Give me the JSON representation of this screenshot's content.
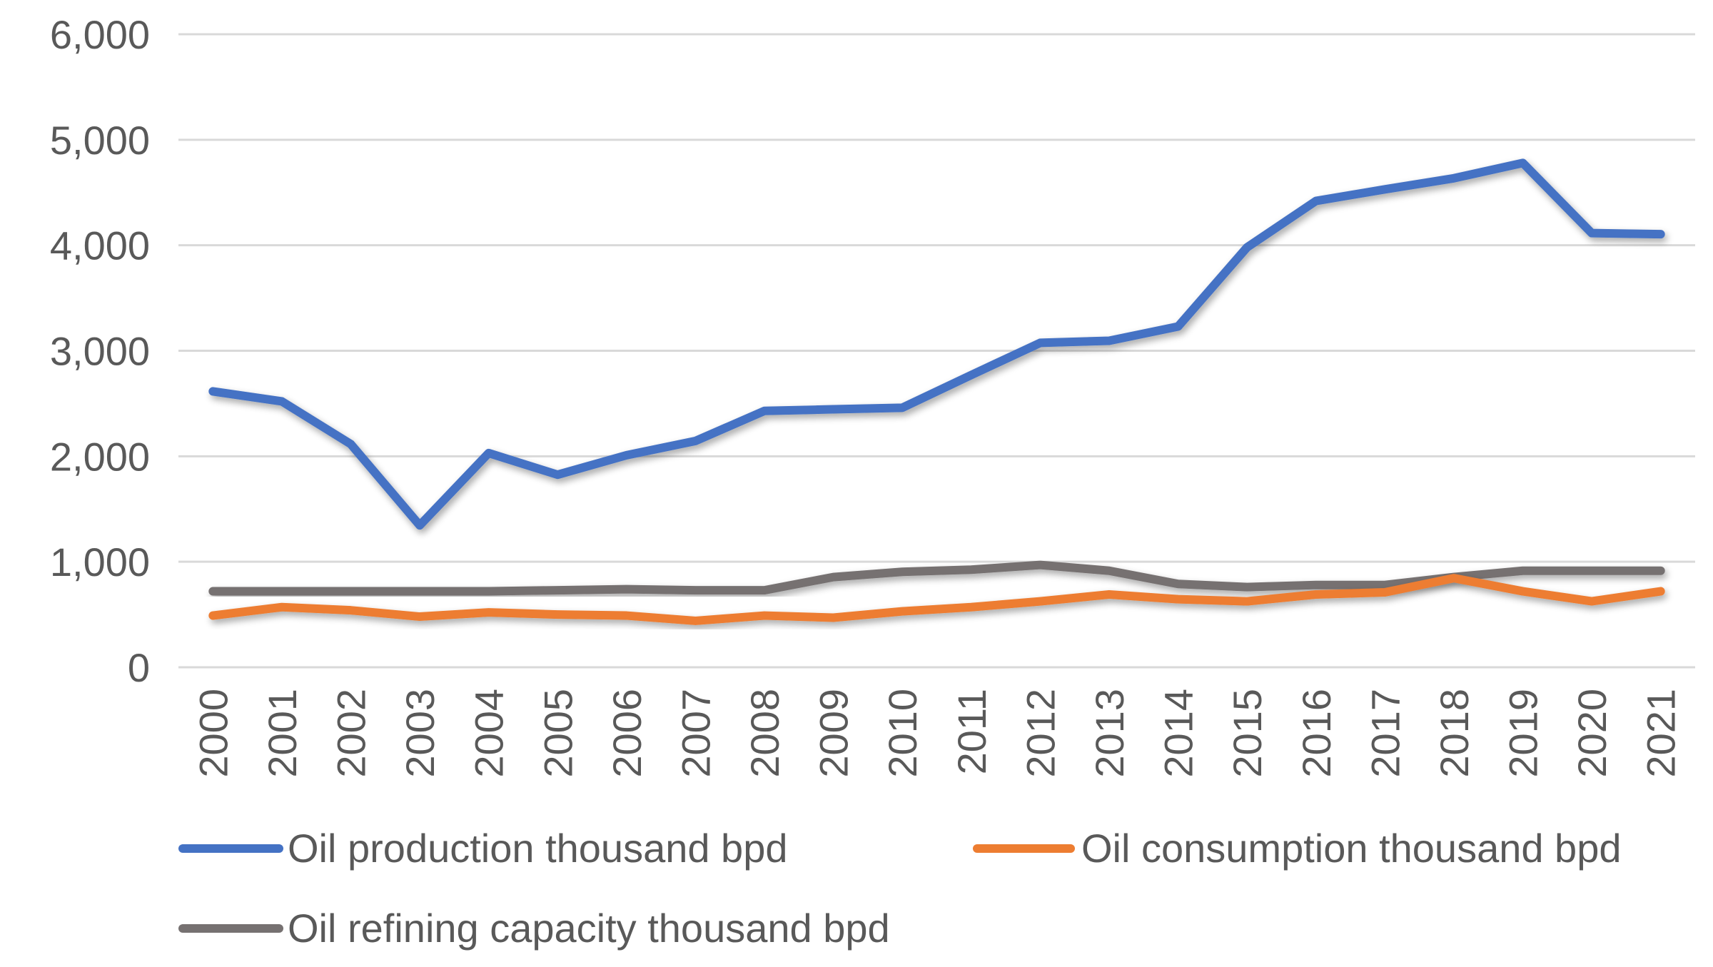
{
  "chart_data": {
    "type": "line",
    "title": "",
    "xlabel": "",
    "ylabel": "",
    "ylim": [
      0,
      6000
    ],
    "yticks": [
      "0",
      "1,000",
      "2,000",
      "3,000",
      "4,000",
      "5,000",
      "6,000"
    ],
    "grid": true,
    "legend_position": "bottom",
    "categories": [
      "2000",
      "2001",
      "2002",
      "2003",
      "2004",
      "2005",
      "2006",
      "2007",
      "2008",
      "2009",
      "2010",
      "2011",
      "2012",
      "2013",
      "2014",
      "2015",
      "2016",
      "2017",
      "2018",
      "2019",
      "2020",
      "2021"
    ],
    "series": [
      {
        "name": "Oil production thousand bpd",
        "color": "#4472C4",
        "values": [
          2615,
          2520,
          2115,
          1345,
          2030,
          1825,
          2010,
          2145,
          2430,
          2445,
          2460,
          2770,
          3075,
          3095,
          3230,
          3980,
          4420,
          4530,
          4635,
          4780,
          4115,
          4105
        ]
      },
      {
        "name": "Oil consumption thousand bpd",
        "color": "#ED7D31",
        "values": [
          490,
          570,
          540,
          480,
          520,
          500,
          490,
          440,
          490,
          470,
          530,
          570,
          625,
          690,
          645,
          625,
          690,
          710,
          845,
          720,
          625,
          720
        ]
      },
      {
        "name": "Oil refining capacity thousand bpd",
        "color": "#767171",
        "values": [
          720,
          720,
          720,
          720,
          720,
          730,
          740,
          730,
          730,
          855,
          905,
          925,
          970,
          915,
          790,
          760,
          780,
          780,
          855,
          915,
          915,
          915
        ]
      }
    ]
  }
}
